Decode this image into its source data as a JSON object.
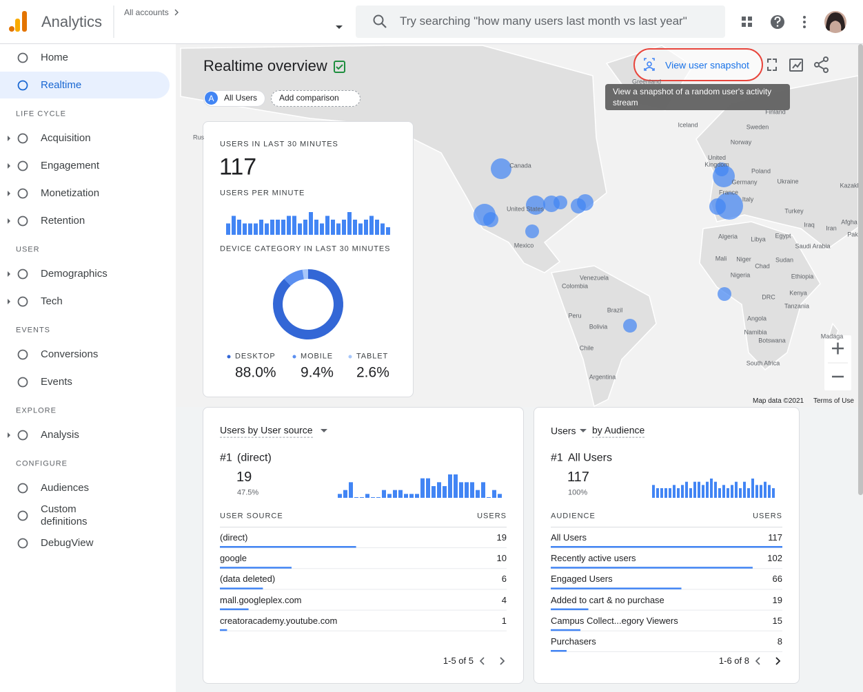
{
  "header": {
    "product": "Analytics",
    "breadcrumb": "All accounts",
    "search_placeholder": "Try searching \"how many users last month vs last year\""
  },
  "nav": {
    "top": [
      "Home",
      "Realtime"
    ],
    "sections": [
      {
        "title": "LIFE CYCLE",
        "items": [
          "Acquisition",
          "Engagement",
          "Monetization",
          "Retention"
        ]
      },
      {
        "title": "USER",
        "items": [
          "Demographics",
          "Tech"
        ]
      },
      {
        "title": "EVENTS",
        "items": [
          "Conversions",
          "Events"
        ]
      },
      {
        "title": "EXPLORE",
        "items": [
          "Analysis"
        ]
      },
      {
        "title": "CONFIGURE",
        "items": [
          "Audiences",
          "Custom definitions",
          "DebugView"
        ]
      }
    ]
  },
  "realtime": {
    "title": "Realtime overview",
    "comparison_chip": {
      "letter": "A",
      "label": "All Users"
    },
    "add_comparison": "Add comparison",
    "snapshot_button": "View user snapshot",
    "tooltip": "View a snapshot of a random user's activity stream",
    "map_attribution": "Map data ©2021",
    "terms": "Terms of Use",
    "map_labels": [
      "Greenland",
      "Finland",
      "Iceland",
      "Sweden",
      "Norway",
      "Canada",
      "United Kingdom",
      "Poland",
      "Germany",
      "Ukraine",
      "Kazakl",
      "France",
      "Italy",
      "Turkey",
      "United States",
      "Iraq",
      "Iran",
      "Afgha",
      "Pak",
      "Mexico",
      "Algeria",
      "Libya",
      "Egypt",
      "Saudi Arabia",
      "Mali",
      "Niger",
      "Sudan",
      "Chad",
      "Nigeria",
      "Ethiopia",
      "Venezuela",
      "Colombia",
      "Kenya",
      "DRC",
      "Tanzania",
      "Brazil",
      "Peru",
      "Bolivia",
      "Angola",
      "Namibia",
      "Botswana",
      "Madaga",
      "Chile",
      "South Africa",
      "Argentina",
      "Rus"
    ]
  },
  "summary_card": {
    "users_heading": "USERS IN LAST 30 MINUTES",
    "users_total": 117,
    "per_minute_heading": "USERS PER MINUTE",
    "device_heading": "DEVICE CATEGORY IN LAST 30 MINUTES"
  },
  "chart_data": [
    {
      "type": "bar",
      "values": [
        3,
        5,
        4,
        3,
        3,
        3,
        4,
        3,
        4,
        4,
        4,
        5,
        5,
        3,
        4,
        6,
        4,
        3,
        5,
        4,
        3,
        4,
        6,
        4,
        3,
        4,
        5,
        4,
        3,
        2
      ],
      "color": "#4285f4"
    },
    {
      "type": "donut",
      "categories": [
        "DESKTOP",
        "MOBILE",
        "TABLET"
      ],
      "values": [
        88.0,
        9.4,
        2.6
      ],
      "value_labels": [
        "88.0%",
        "9.4%",
        "2.6%"
      ],
      "colors": [
        "#3367d6",
        "#5b8ff0",
        "#a8c7fa"
      ]
    },
    {
      "type": "bar",
      "values": [
        1,
        2,
        4,
        0,
        0,
        1,
        0,
        0,
        2,
        1,
        2,
        2,
        1,
        1,
        1,
        5,
        5,
        3,
        4,
        3,
        6,
        6,
        4,
        4,
        4,
        2,
        4,
        0,
        2,
        1
      ],
      "color": "#4285f4"
    },
    {
      "type": "bar",
      "values": [
        4,
        3,
        3,
        3,
        3,
        4,
        3,
        4,
        5,
        3,
        5,
        5,
        4,
        5,
        6,
        5,
        3,
        4,
        3,
        4,
        5,
        3,
        5,
        3,
        6,
        4,
        4,
        5,
        4,
        3
      ],
      "color": "#4285f4"
    }
  ],
  "user_source_card": {
    "metric": "Users by User source",
    "rank": "#1",
    "top_name": "(direct)",
    "top_value": 19,
    "top_share": "47.5%",
    "columns": [
      "USER SOURCE",
      "USERS"
    ],
    "rows": [
      [
        "(direct)",
        19
      ],
      [
        "google",
        10
      ],
      [
        "(data deleted)",
        6
      ],
      [
        "mall.googleplex.com",
        4
      ],
      [
        "creatoracademy.youtube.com",
        1
      ]
    ],
    "pagination": "1-5 of 5"
  },
  "audience_card": {
    "metric": "Users",
    "dimension": "by Audience",
    "rank": "#1",
    "top_name": "All Users",
    "top_value": 117,
    "top_share": "100%",
    "columns": [
      "AUDIENCE",
      "USERS"
    ],
    "rows": [
      [
        "All Users",
        117
      ],
      [
        "Recently active users",
        102
      ],
      [
        "Engaged Users",
        66
      ],
      [
        "Added to cart & no purchase",
        19
      ],
      [
        "Campus Collect...egory Viewers",
        15
      ],
      [
        "Purchasers",
        8
      ]
    ],
    "pagination": "1-6 of 8"
  }
}
